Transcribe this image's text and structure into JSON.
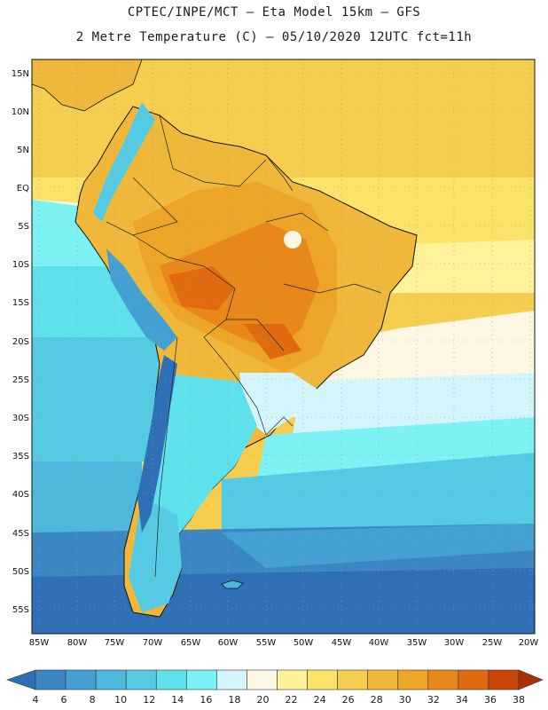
{
  "header": {
    "line1": "CPTEC/INPE/MCT –  Eta Model 15km – GFS",
    "line2": "2 Metre Temperature (C) – 05/10/2020 12UTC fct=11h"
  },
  "map": {
    "lat_labels": [
      "15N",
      "10N",
      "5N",
      "EQ",
      "5S",
      "10S",
      "15S",
      "20S",
      "25S",
      "30S",
      "35S",
      "40S",
      "45S",
      "50S",
      "55S"
    ],
    "lon_labels": [
      "85W",
      "80W",
      "75W",
      "70W",
      "65W",
      "60W",
      "55W",
      "50W",
      "45W",
      "40W",
      "35W",
      "30W",
      "25W",
      "20W"
    ]
  },
  "colorbar": {
    "colors": [
      "#2f6fb5",
      "#3b87c4",
      "#45a0d2",
      "#4db7dc",
      "#55cbe3",
      "#5fe1ec",
      "#7cf2f5",
      "#d2f6fb",
      "#fdf8e3",
      "#fff399",
      "#fbe36a",
      "#f5ce4f",
      "#efb83a",
      "#eda528",
      "#e8871a",
      "#e06a10",
      "#c84708",
      "#a83205"
    ],
    "labels": [
      "4",
      "6",
      "8",
      "10",
      "12",
      "14",
      "16",
      "18",
      "20",
      "22",
      "24",
      "26",
      "28",
      "30",
      "32",
      "34",
      "36",
      "38"
    ]
  }
}
